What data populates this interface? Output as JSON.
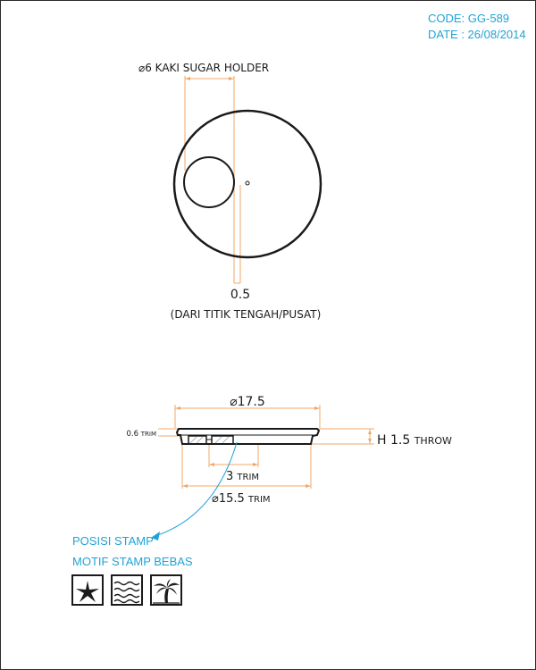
{
  "header": {
    "code": "CODE: GG-589",
    "date": "DATE : 26/08/2014"
  },
  "top_view": {
    "holder_label": "⌀6 KAKI SUGAR HOLDER",
    "offset_value": "0.5",
    "offset_note": "(DARI TITIK TENGAH/PUSAT)"
  },
  "side_view": {
    "outer_diameter": "⌀17.5",
    "trim_thickness_value": "0.6",
    "trim_thickness_unit": "TRIM",
    "height_value": "H 1.5",
    "height_unit": "THROW",
    "inner_trim_value": "3",
    "inner_trim_unit": "TRIM",
    "base_diameter_value": "⌀15.5",
    "base_diameter_unit": "TRIM"
  },
  "stamp": {
    "position_label": "POSISI STAMP",
    "motif_label": "MOTIF STAMP BEBAS",
    "motifs": [
      "starfish-icon",
      "waves-icon",
      "palm-tree-icon"
    ]
  },
  "colors": {
    "dimension": "#f0a868",
    "accent": "#1fa3d6",
    "outline": "#1a1a1a"
  }
}
